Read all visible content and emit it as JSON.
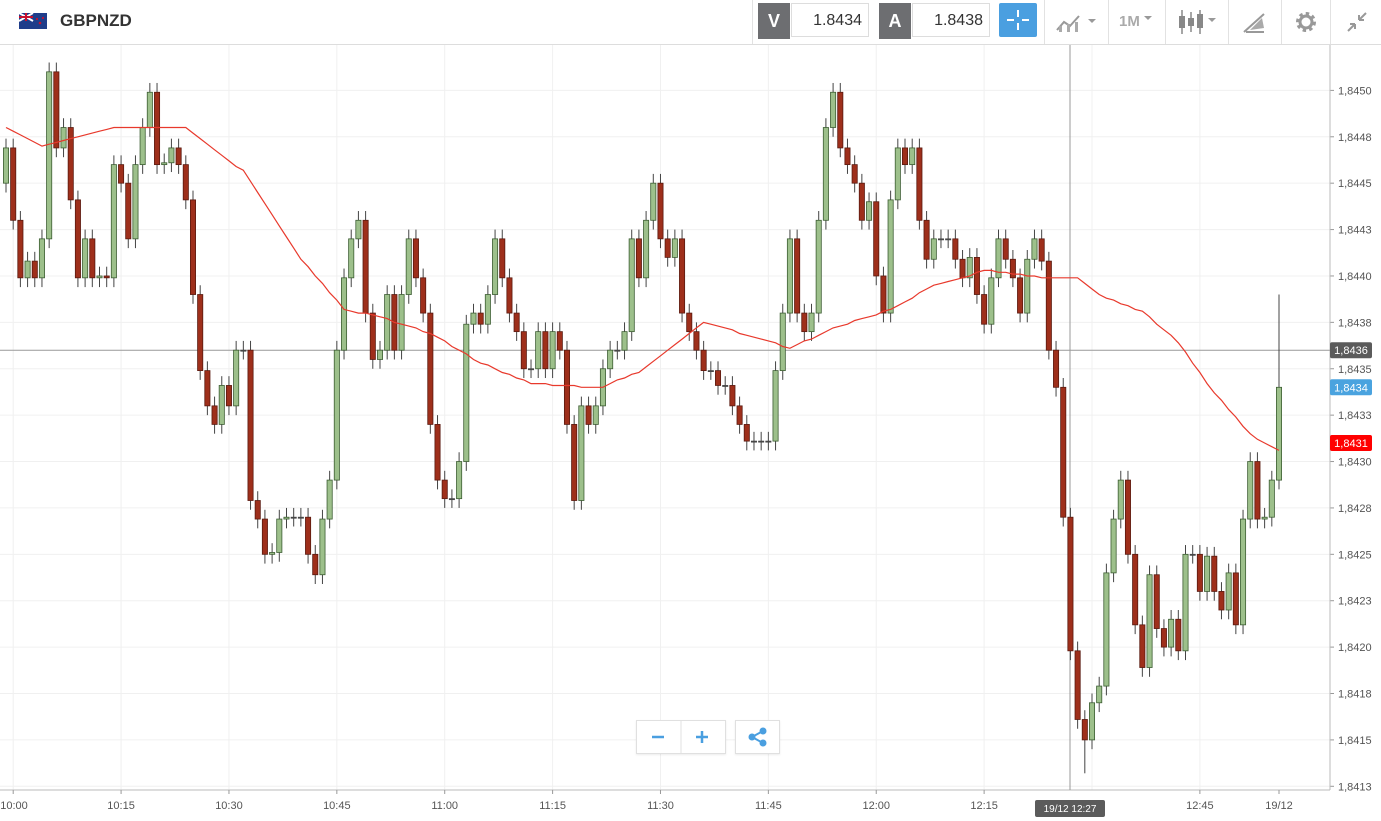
{
  "toolbar": {
    "symbol": "GBPNZD",
    "bid": {
      "label": "V",
      "price": "1.8434"
    },
    "ask": {
      "label": "A",
      "price": "1.8438"
    },
    "timeframe": "1M"
  },
  "chart_data": {
    "type": "candlestick",
    "categories": [
      null,
      "10:00",
      null,
      null,
      null,
      null,
      null,
      null,
      null,
      null,
      null,
      null,
      null,
      null,
      null,
      null,
      "10:15",
      null,
      null,
      null,
      null,
      null,
      null,
      null,
      null,
      null,
      null,
      null,
      null,
      null,
      null,
      "10:30",
      null,
      null,
      null,
      null,
      null,
      null,
      null,
      null,
      null,
      null,
      null,
      null,
      null,
      null,
      "10:45",
      null,
      null,
      null,
      null,
      null,
      null,
      null,
      null,
      null,
      null,
      null,
      null,
      null,
      null,
      "11:00",
      null,
      null,
      null,
      null,
      null,
      null,
      null,
      null,
      null,
      null,
      null,
      null,
      null,
      null,
      "11:15",
      null,
      null,
      null,
      null,
      null,
      null,
      null,
      null,
      null,
      null,
      null,
      null,
      null,
      null,
      "11:30",
      null,
      null,
      null,
      null,
      null,
      null,
      null,
      null,
      null,
      null,
      null,
      null,
      null,
      null,
      "11:45",
      null,
      null,
      null,
      null,
      null,
      null,
      null,
      null,
      null,
      null,
      null,
      null,
      null,
      null,
      "12:00",
      null,
      null,
      null,
      null,
      null,
      null,
      null,
      null,
      null,
      null,
      null,
      null,
      null,
      null,
      "12:15",
      null,
      null,
      null,
      null,
      null,
      null,
      null,
      null,
      null,
      null,
      null,
      null,
      null,
      null,
      null,
      null,
      null,
      null,
      null,
      null,
      null,
      null,
      null,
      null,
      null,
      null,
      null,
      null,
      null,
      "12:45",
      null,
      null,
      null,
      null,
      null,
      null,
      null,
      null,
      null,
      null,
      "19/12"
    ],
    "open": [
      1.8445,
      1.84469,
      1.8443,
      1.84399,
      1.84408,
      1.84399,
      1.8442,
      1.8451,
      1.84469,
      1.8448,
      1.84441,
      1.84399,
      1.8442,
      1.84399,
      1.844,
      1.84399,
      1.8446,
      1.8445,
      1.8442,
      1.8446,
      1.8448,
      1.84499,
      1.8446,
      1.84461,
      1.84469,
      1.8446,
      1.84441,
      1.8439,
      1.84349,
      1.8433,
      1.8432,
      1.84341,
      1.8433,
      1.8436,
      1.8436,
      1.84279,
      1.84269,
      1.8425,
      1.84251,
      1.84269,
      1.8427,
      1.8427,
      1.8427,
      1.8425,
      1.84239,
      1.84269,
      1.8429,
      1.8436,
      1.84399,
      1.8442,
      1.8443,
      1.8438,
      1.84355,
      1.8436,
      1.8439,
      1.8436,
      1.8439,
      1.8442,
      1.84399,
      1.8438,
      1.8432,
      1.8429,
      1.8428,
      1.8428,
      1.843,
      1.84374,
      1.8438,
      1.84374,
      1.8439,
      1.8442,
      1.84399,
      1.8438,
      1.8437,
      1.8435,
      1.8435,
      1.8437,
      1.8435,
      1.8437,
      1.8436,
      1.8432,
      1.84279,
      1.8433,
      1.8432,
      1.8433,
      1.8435,
      1.8436,
      1.8436,
      1.8437,
      1.8442,
      1.84399,
      1.8443,
      1.8445,
      1.8442,
      1.8441,
      1.8442,
      1.8438,
      1.8437,
      1.8436,
      1.84349,
      1.84349,
      1.84341,
      1.84341,
      1.8433,
      1.8432,
      1.84311,
      1.84311,
      1.84311,
      1.84311,
      1.84349,
      1.8438,
      1.8442,
      1.8438,
      1.8437,
      1.8438,
      1.8443,
      1.8448,
      1.84499,
      1.84469,
      1.8446,
      1.8445,
      1.8443,
      1.8444,
      1.844,
      1.8438,
      1.84441,
      1.84469,
      1.8446,
      1.84469,
      1.8443,
      1.84409,
      1.8442,
      1.8442,
      1.8442,
      1.84409,
      1.84399,
      1.8441,
      1.8439,
      1.84374,
      1.84399,
      1.8442,
      1.84409,
      1.84399,
      1.8438,
      1.84409,
      1.8442,
      1.84408,
      1.8436,
      1.8434,
      1.8427,
      1.84198,
      1.84161,
      1.8415,
      1.8417,
      1.84179,
      1.8424,
      1.84269,
      1.8429,
      1.8425,
      1.84212,
      1.84189,
      1.84239,
      1.8421,
      1.842,
      1.84215,
      1.84198,
      1.8425,
      1.8425,
      1.8423,
      1.84249,
      1.8423,
      1.8422,
      1.8424,
      1.84212,
      1.84269,
      1.843,
      1.84269,
      1.8427,
      1.8429
    ],
    "high": [
      1.84474,
      1.84474,
      1.84435,
      1.84413,
      1.84413,
      1.84425,
      1.84515,
      1.84515,
      1.84485,
      1.84485,
      1.84446,
      1.84425,
      1.84425,
      1.84405,
      1.84405,
      1.84465,
      1.84465,
      1.84455,
      1.84465,
      1.84485,
      1.84504,
      1.84504,
      1.84466,
      1.84474,
      1.84474,
      1.84465,
      1.84446,
      1.84395,
      1.84354,
      1.84335,
      1.84346,
      1.84346,
      1.84365,
      1.84365,
      1.84365,
      1.84284,
      1.84274,
      1.84256,
      1.84274,
      1.84275,
      1.84275,
      1.84275,
      1.84275,
      1.84255,
      1.84274,
      1.84295,
      1.84365,
      1.84404,
      1.84425,
      1.84435,
      1.84435,
      1.84385,
      1.84365,
      1.84395,
      1.84395,
      1.84395,
      1.84425,
      1.84425,
      1.84404,
      1.84385,
      1.84325,
      1.84295,
      1.84285,
      1.84305,
      1.84379,
      1.84385,
      1.84385,
      1.84395,
      1.84425,
      1.84425,
      1.84404,
      1.84385,
      1.84375,
      1.84355,
      1.84375,
      1.84375,
      1.84375,
      1.84375,
      1.84365,
      1.84325,
      1.84335,
      1.84335,
      1.84335,
      1.84355,
      1.84365,
      1.84365,
      1.84375,
      1.84425,
      1.84425,
      1.84435,
      1.84455,
      1.84455,
      1.84425,
      1.84425,
      1.84425,
      1.84385,
      1.84375,
      1.84365,
      1.84354,
      1.84354,
      1.84346,
      1.84346,
      1.84335,
      1.84325,
      1.84316,
      1.84316,
      1.84316,
      1.84354,
      1.84385,
      1.84425,
      1.84425,
      1.84385,
      1.84385,
      1.84435,
      1.84485,
      1.84504,
      1.84504,
      1.84474,
      1.84465,
      1.84455,
      1.84445,
      1.84445,
      1.84405,
      1.84446,
      1.84474,
      1.84474,
      1.84474,
      1.84474,
      1.84435,
      1.84425,
      1.84425,
      1.84425,
      1.84425,
      1.84414,
      1.84415,
      1.84415,
      1.84395,
      1.84404,
      1.84425,
      1.84425,
      1.84414,
      1.84404,
      1.84414,
      1.84425,
      1.84425,
      1.84413,
      1.84365,
      1.84345,
      1.84275,
      1.84203,
      1.84166,
      1.84175,
      1.84184,
      1.84245,
      1.84274,
      1.84295,
      1.84295,
      1.84255,
      1.84217,
      1.84244,
      1.84244,
      1.84215,
      1.8422,
      1.8422,
      1.84255,
      1.84255,
      1.84255,
      1.84254,
      1.84254,
      1.84235,
      1.84245,
      1.84245,
      1.84274,
      1.84305,
      1.84305,
      1.84275,
      1.84295,
      1.8439
    ],
    "low": [
      1.84445,
      1.84425,
      1.84394,
      1.84394,
      1.84394,
      1.84394,
      1.84415,
      1.84464,
      1.84464,
      1.84436,
      1.84394,
      1.84394,
      1.84394,
      1.84394,
      1.84394,
      1.84394,
      1.84445,
      1.84415,
      1.84415,
      1.84455,
      1.84475,
      1.84455,
      1.84455,
      1.84456,
      1.84455,
      1.84436,
      1.84385,
      1.84344,
      1.84325,
      1.84315,
      1.84315,
      1.84325,
      1.84325,
      1.84355,
      1.84274,
      1.84264,
      1.84245,
      1.84245,
      1.84246,
      1.84264,
      1.84265,
      1.84265,
      1.84245,
      1.84234,
      1.84234,
      1.84264,
      1.84285,
      1.84355,
      1.84394,
      1.84415,
      1.84375,
      1.8435,
      1.8435,
      1.84355,
      1.84355,
      1.84355,
      1.84385,
      1.84394,
      1.84375,
      1.84315,
      1.84285,
      1.84275,
      1.84275,
      1.84275,
      1.84295,
      1.84369,
      1.84369,
      1.84369,
      1.84385,
      1.84394,
      1.84375,
      1.84365,
      1.84345,
      1.84345,
      1.84345,
      1.84345,
      1.84345,
      1.84355,
      1.84315,
      1.84274,
      1.84274,
      1.84315,
      1.84315,
      1.84325,
      1.84345,
      1.84355,
      1.84355,
      1.84365,
      1.84394,
      1.84394,
      1.84425,
      1.84415,
      1.84405,
      1.84405,
      1.84375,
      1.84365,
      1.84355,
      1.84344,
      1.84344,
      1.84336,
      1.84336,
      1.84325,
      1.84315,
      1.84306,
      1.84306,
      1.84306,
      1.84306,
      1.84306,
      1.84344,
      1.84375,
      1.84375,
      1.84365,
      1.84365,
      1.84375,
      1.84425,
      1.84475,
      1.84464,
      1.84455,
      1.84445,
      1.84425,
      1.84425,
      1.84395,
      1.84375,
      1.84375,
      1.84436,
      1.84455,
      1.84455,
      1.84425,
      1.84404,
      1.84404,
      1.84415,
      1.84415,
      1.84404,
      1.84394,
      1.84394,
      1.84385,
      1.84369,
      1.84369,
      1.84394,
      1.84404,
      1.84394,
      1.84375,
      1.84375,
      1.84404,
      1.84403,
      1.84355,
      1.84335,
      1.84265,
      1.84193,
      1.84156,
      1.84132,
      1.84145,
      1.84165,
      1.84174,
      1.84235,
      1.84264,
      1.84245,
      1.84207,
      1.84184,
      1.84184,
      1.84205,
      1.84195,
      1.84195,
      1.84193,
      1.84193,
      1.84245,
      1.84225,
      1.84225,
      1.84225,
      1.84215,
      1.84215,
      1.84207,
      1.84207,
      1.84264,
      1.84264,
      1.84264,
      1.84265,
      1.84285
    ],
    "close": [
      1.84469,
      1.8443,
      1.84399,
      1.84408,
      1.84399,
      1.8442,
      1.8451,
      1.84469,
      1.8448,
      1.84441,
      1.84399,
      1.8442,
      1.84399,
      1.844,
      1.84399,
      1.8446,
      1.8445,
      1.8442,
      1.8446,
      1.8448,
      1.84499,
      1.8446,
      1.84461,
      1.84469,
      1.8446,
      1.84441,
      1.8439,
      1.84349,
      1.8433,
      1.8432,
      1.84341,
      1.8433,
      1.8436,
      1.8436,
      1.84279,
      1.84269,
      1.8425,
      1.84251,
      1.84269,
      1.8427,
      1.8427,
      1.8427,
      1.8425,
      1.84239,
      1.84269,
      1.8429,
      1.8436,
      1.84399,
      1.8442,
      1.8443,
      1.8438,
      1.84355,
      1.8436,
      1.8439,
      1.8436,
      1.8439,
      1.8442,
      1.84399,
      1.8438,
      1.8432,
      1.8429,
      1.8428,
      1.8428,
      1.843,
      1.84374,
      1.8438,
      1.84374,
      1.8439,
      1.8442,
      1.84399,
      1.8438,
      1.8437,
      1.8435,
      1.8435,
      1.8437,
      1.8435,
      1.8437,
      1.8436,
      1.8432,
      1.84279,
      1.8433,
      1.8432,
      1.8433,
      1.8435,
      1.8436,
      1.8436,
      1.8437,
      1.8442,
      1.84399,
      1.8443,
      1.8445,
      1.8442,
      1.8441,
      1.8442,
      1.8438,
      1.8437,
      1.8436,
      1.84349,
      1.84349,
      1.84341,
      1.84341,
      1.8433,
      1.8432,
      1.84311,
      1.84311,
      1.84311,
      1.84311,
      1.84349,
      1.8438,
      1.8442,
      1.8438,
      1.8437,
      1.8438,
      1.8443,
      1.8448,
      1.84499,
      1.84469,
      1.8446,
      1.8445,
      1.8443,
      1.8444,
      1.844,
      1.8438,
      1.84441,
      1.84469,
      1.8446,
      1.84469,
      1.8443,
      1.84409,
      1.8442,
      1.8442,
      1.8442,
      1.84409,
      1.84399,
      1.8441,
      1.8439,
      1.84374,
      1.84399,
      1.8442,
      1.84409,
      1.84399,
      1.8438,
      1.84409,
      1.8442,
      1.84408,
      1.8436,
      1.8434,
      1.8427,
      1.84198,
      1.84161,
      1.8415,
      1.8417,
      1.84179,
      1.8424,
      1.84269,
      1.8429,
      1.8425,
      1.84212,
      1.84189,
      1.84239,
      1.8421,
      1.842,
      1.84215,
      1.84198,
      1.8425,
      1.8425,
      1.8423,
      1.84249,
      1.8423,
      1.8422,
      1.8424,
      1.84212,
      1.84269,
      1.843,
      1.84269,
      1.8427,
      1.8429,
      1.8434
    ],
    "up_color": "#9dc08b",
    "down_color": "#9e2f1b",
    "moving_average": {
      "color": "#e8392c",
      "values": [
        1.8448,
        1.84478,
        1.84476,
        1.84474,
        1.84472,
        1.8447,
        1.84471,
        1.84472,
        1.84473,
        1.84474,
        1.84475,
        1.84476,
        1.84477,
        1.84478,
        1.84479,
        1.8448,
        1.8448,
        1.8448,
        1.8448,
        1.8448,
        1.8448,
        1.8448,
        1.8448,
        1.8448,
        1.8448,
        1.8448,
        1.84477,
        1.84474,
        1.84471,
        1.84468,
        1.84465,
        1.84462,
        1.84459,
        1.84457,
        1.84451,
        1.84445,
        1.84439,
        1.84433,
        1.84427,
        1.84421,
        1.84415,
        1.84409,
        1.84405,
        1.844,
        1.84396,
        1.84391,
        1.84387,
        1.84382,
        1.84381,
        1.8438,
        1.8438,
        1.84379,
        1.84378,
        1.84377,
        1.84375,
        1.84374,
        1.84373,
        1.84372,
        1.8437,
        1.84369,
        1.84367,
        1.84365,
        1.84362,
        1.8436,
        1.84358,
        1.84355,
        1.84353,
        1.84352,
        1.8435,
        1.84348,
        1.84347,
        1.84345,
        1.84344,
        1.84342,
        1.84342,
        1.84342,
        1.84341,
        1.84341,
        1.84341,
        1.84341,
        1.8434,
        1.8434,
        1.8434,
        1.8434,
        1.84342,
        1.84344,
        1.84345,
        1.84347,
        1.84348,
        1.84351,
        1.84354,
        1.84357,
        1.8436,
        1.84363,
        1.84366,
        1.84369,
        1.84372,
        1.84375,
        1.84374,
        1.84373,
        1.84372,
        1.84371,
        1.84369,
        1.84368,
        1.84367,
        1.84366,
        1.84365,
        1.84364,
        1.84362,
        1.84361,
        1.84363,
        1.84365,
        1.84366,
        1.84368,
        1.8437,
        1.84372,
        1.84373,
        1.84374,
        1.84376,
        1.84377,
        1.84378,
        1.84379,
        1.84381,
        1.84382,
        1.84384,
        1.84386,
        1.84388,
        1.84391,
        1.84393,
        1.84395,
        1.84396,
        1.84397,
        1.84398,
        1.84399,
        1.844,
        1.84402,
        1.84403,
        1.84403,
        1.84402,
        1.84402,
        1.84401,
        1.84401,
        1.844,
        1.844,
        1.84399,
        1.84399,
        1.84399,
        1.84399,
        1.84399,
        1.84399,
        1.84396,
        1.84393,
        1.8439,
        1.84388,
        1.84387,
        1.84385,
        1.84384,
        1.84382,
        1.84381,
        1.84378,
        1.84374,
        1.84371,
        1.84368,
        1.84364,
        1.84359,
        1.84353,
        1.84348,
        1.84342,
        1.84337,
        1.84333,
        1.84328,
        1.84324,
        1.84319,
        1.84315,
        1.84312,
        1.8431,
        1.84308,
        1.84306
      ]
    },
    "ylim": [
      1.84123,
      1.84525
    ],
    "yticks": [
      {
        "value": 1.845,
        "label": "1,8450"
      },
      {
        "value": 1.84475,
        "label": "1,8448"
      },
      {
        "value": 1.8445,
        "label": "1,8445"
      },
      {
        "value": 1.84425,
        "label": "1,8443"
      },
      {
        "value": 1.844,
        "label": "1,8440"
      },
      {
        "value": 1.84375,
        "label": "1,8438"
      },
      {
        "value": 1.8435,
        "label": "1,8435"
      },
      {
        "value": 1.84325,
        "label": "1,8433"
      },
      {
        "value": 1.843,
        "label": "1,8430"
      },
      {
        "value": 1.84275,
        "label": "1,8428"
      },
      {
        "value": 1.8425,
        "label": "1,8425"
      },
      {
        "value": 1.84225,
        "label": "1,8423"
      },
      {
        "value": 1.842,
        "label": "1,8420"
      },
      {
        "value": 1.84175,
        "label": "1,8418"
      },
      {
        "value": 1.8415,
        "label": "1,8415"
      },
      {
        "value": 1.84125,
        "label": "1,8413"
      }
    ],
    "grid": true,
    "crosshair": {
      "y": {
        "value": 1.8436,
        "label": "1,8436"
      },
      "x_label": "19/12 12:27"
    },
    "last_price": {
      "value": 1.8434,
      "label": "1,8434",
      "color": "#4aa3df"
    },
    "ma_last": {
      "value": 1.8431,
      "label": "1,8431",
      "color": "#ff0000"
    }
  }
}
